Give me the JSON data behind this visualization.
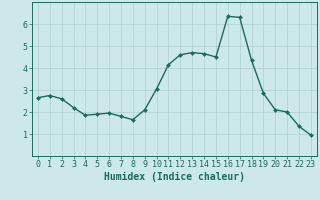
{
  "x": [
    0,
    1,
    2,
    3,
    4,
    5,
    6,
    7,
    8,
    9,
    10,
    11,
    12,
    13,
    14,
    15,
    16,
    17,
    18,
    19,
    20,
    21,
    22,
    23
  ],
  "y": [
    2.65,
    2.75,
    2.6,
    2.2,
    1.85,
    1.9,
    1.95,
    1.8,
    1.65,
    2.1,
    3.05,
    4.15,
    4.6,
    4.7,
    4.65,
    4.5,
    6.35,
    6.3,
    4.35,
    2.85,
    2.1,
    2.0,
    1.35,
    0.95
  ],
  "line_color": "#1a6b5e",
  "marker": "D",
  "markersize": 2.0,
  "linewidth": 1.0,
  "xlabel": "Humidex (Indice chaleur)",
  "bg_color": "#cde8e8",
  "grid_color": "#b0cfcf",
  "axis_color": "#1a6b5e",
  "tick_color": "#1a6b5e",
  "xlim": [
    -0.5,
    23.5
  ],
  "ylim": [
    0,
    7
  ],
  "yticks": [
    1,
    2,
    3,
    4,
    5,
    6
  ],
  "xticks": [
    0,
    1,
    2,
    3,
    4,
    5,
    6,
    7,
    8,
    9,
    10,
    11,
    12,
    13,
    14,
    15,
    16,
    17,
    18,
    19,
    20,
    21,
    22,
    23
  ],
  "xlabel_fontsize": 7.0,
  "tick_fontsize": 6.0
}
